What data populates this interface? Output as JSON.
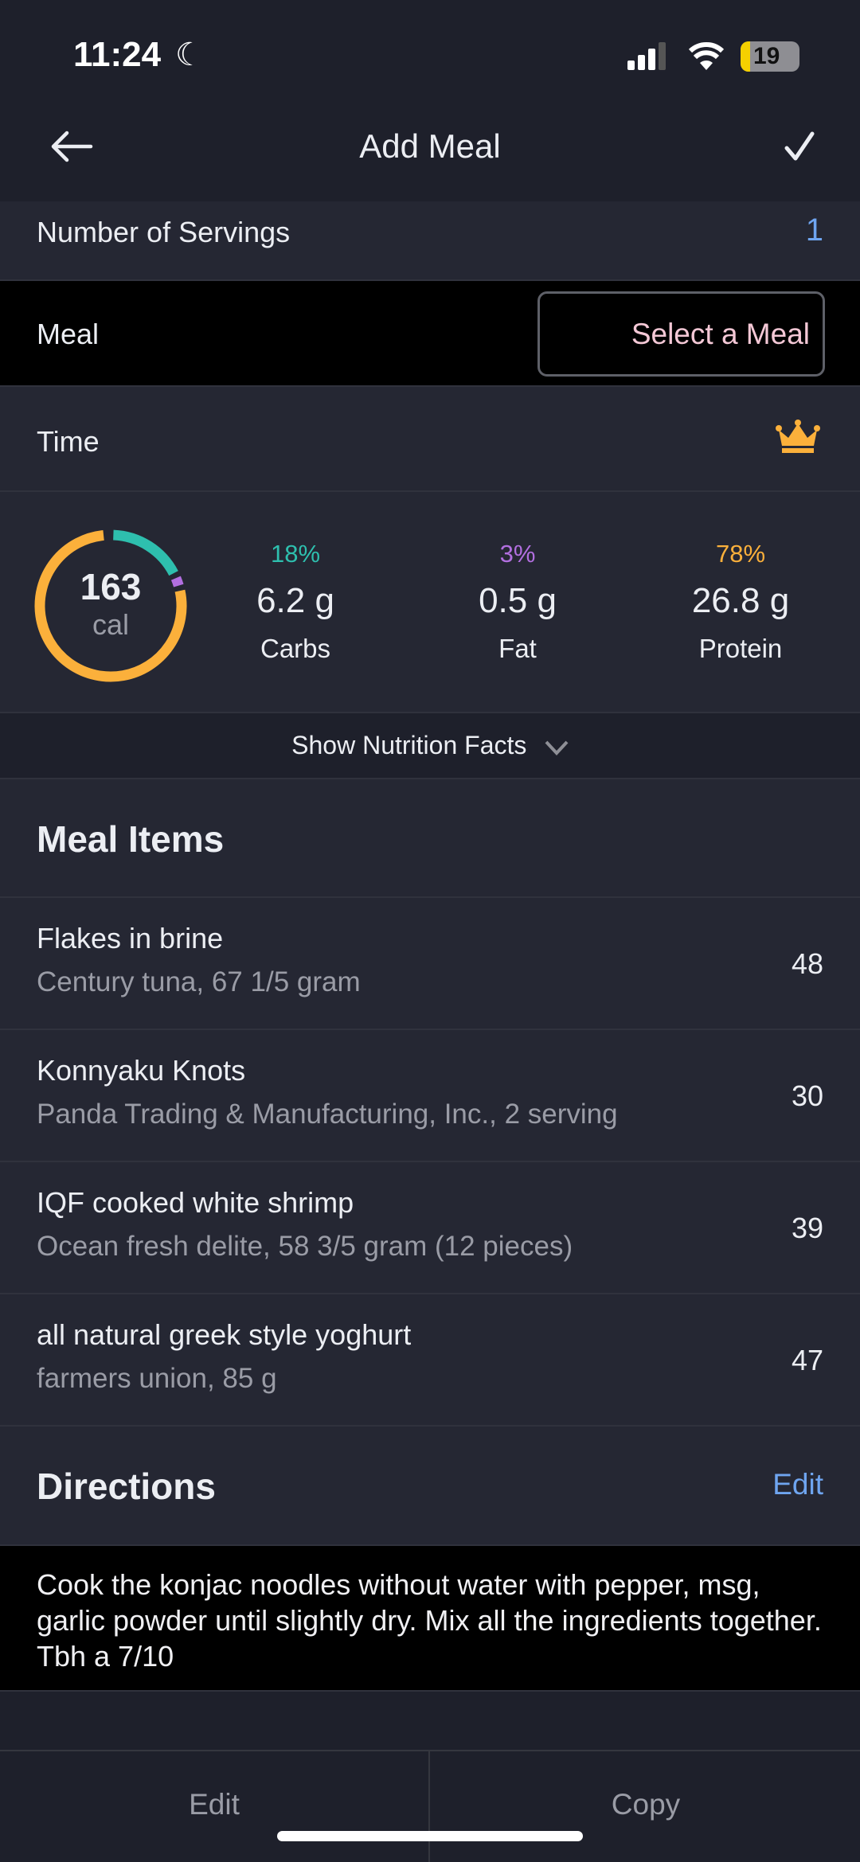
{
  "status_bar": {
    "time": "11:24",
    "battery": "19"
  },
  "header": {
    "title": "Add Meal"
  },
  "servings": {
    "label": "Number of Servings",
    "value": "1"
  },
  "meal": {
    "label": "Meal",
    "button": "Select a Meal"
  },
  "time": {
    "label": "Time"
  },
  "nutrition": {
    "calories": "163",
    "cal_unit": "cal",
    "macros": [
      {
        "pct": "18%",
        "grams": "6.2 g",
        "name": "Carbs",
        "color": "#2ebfae",
        "fraction": 0.18
      },
      {
        "pct": "3%",
        "grams": "0.5 g",
        "name": "Fat",
        "color": "#b26fe0",
        "fraction": 0.03
      },
      {
        "pct": "78%",
        "grams": "26.8 g",
        "name": "Protein",
        "color": "#fbb03b",
        "fraction": 0.78
      }
    ],
    "show_facts": "Show Nutrition Facts"
  },
  "meal_items": {
    "title": "Meal Items",
    "items": [
      {
        "name": "Flakes in brine",
        "detail": "Century tuna, 67 1/5 gram",
        "cal": "48"
      },
      {
        "name": "Konnyaku Knots",
        "detail": "Panda Trading & Manufacturing, Inc., 2 serving",
        "cal": "30"
      },
      {
        "name": "IQF cooked white shrimp",
        "detail": "Ocean fresh delite, 58 3/5 gram  (12 pieces)",
        "cal": "39"
      },
      {
        "name": "all natural greek style yoghurt",
        "detail": "farmers union, 85 g",
        "cal": "47"
      }
    ]
  },
  "directions": {
    "title": "Directions",
    "edit": "Edit",
    "text": "Cook the konjac noodles without water with pepper, msg, garlic powder until slightly dry. Mix all the ingredients together. Tbh a 7/10"
  },
  "bottom_bar": {
    "edit": "Edit",
    "copy": "Copy"
  },
  "colors": {
    "accent_blue": "#6fa5f0",
    "select_meal": "#f4c8d6",
    "crown": "#fbb03b"
  }
}
